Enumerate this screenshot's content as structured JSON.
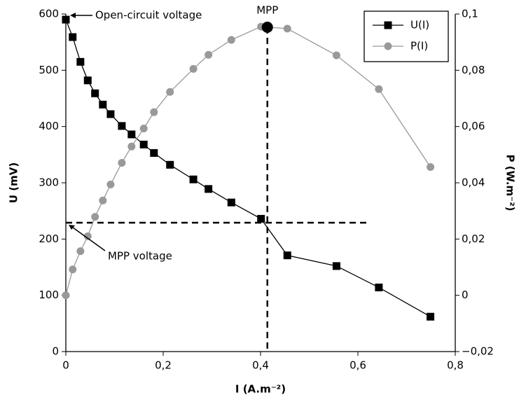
{
  "chart_data": {
    "type": "line",
    "xlabel": "I (A.m⁻²)",
    "ylabel": "U (mV)",
    "y2label": "P (W.m⁻²)",
    "x": [
      0,
      0.014,
      0.03,
      0.045,
      0.06,
      0.076,
      0.092,
      0.115,
      0.135,
      0.16,
      0.181,
      0.214,
      0.262,
      0.293,
      0.34,
      0.401,
      0.455,
      0.556,
      0.643,
      0.749
    ],
    "series": [
      {
        "name": "U(I)",
        "color": "#000000",
        "marker": "square",
        "axis": "y",
        "values": [
          590,
          559,
          515,
          482,
          459,
          439,
          422,
          401,
          386,
          368,
          353,
          332,
          306,
          289,
          265,
          236,
          171,
          152,
          114,
          62
        ]
      },
      {
        "name": "P(I)",
        "color": "#999999",
        "marker": "circle",
        "axis": "y2",
        "values": [
          0,
          0.0092,
          0.0157,
          0.021,
          0.0279,
          0.0337,
          0.0394,
          0.0471,
          0.0529,
          0.0593,
          0.0651,
          0.0723,
          0.0805,
          0.0855,
          0.0908,
          0.0955,
          0.0948,
          0.0853,
          0.0733,
          0.0456
        ]
      }
    ],
    "mpp": {
      "current": 0.414,
      "power": 0.0953,
      "voltage": 229
    },
    "annotations": [
      "MPP",
      "Open-circuit voltage",
      "MPP voltage"
    ],
    "xlim": [
      0,
      0.8
    ],
    "xticks": [
      0,
      {
        "value": 0.2,
        "label": "0,2"
      },
      {
        "value": 0.4,
        "label": "0,4"
      },
      {
        "value": 0.6,
        "label": "0,6"
      },
      {
        "value": 0.8,
        "label": "0,8"
      }
    ],
    "ylim": [
      0,
      600
    ],
    "yticks": [
      0,
      100,
      200,
      300,
      400,
      500,
      600
    ],
    "y2lim": [
      -0.02,
      0.1
    ],
    "y2ticks": [
      {
        "value": -0.02,
        "label": "−0,02"
      },
      0,
      {
        "value": 0.02,
        "label": "0,02"
      },
      {
        "value": 0.04,
        "label": "0,04"
      },
      {
        "value": 0.06,
        "label": "0,06"
      },
      {
        "value": 0.08,
        "label": "0,08"
      },
      {
        "value": 0.1,
        "label": "0,1"
      }
    ],
    "legend": "upper right"
  }
}
